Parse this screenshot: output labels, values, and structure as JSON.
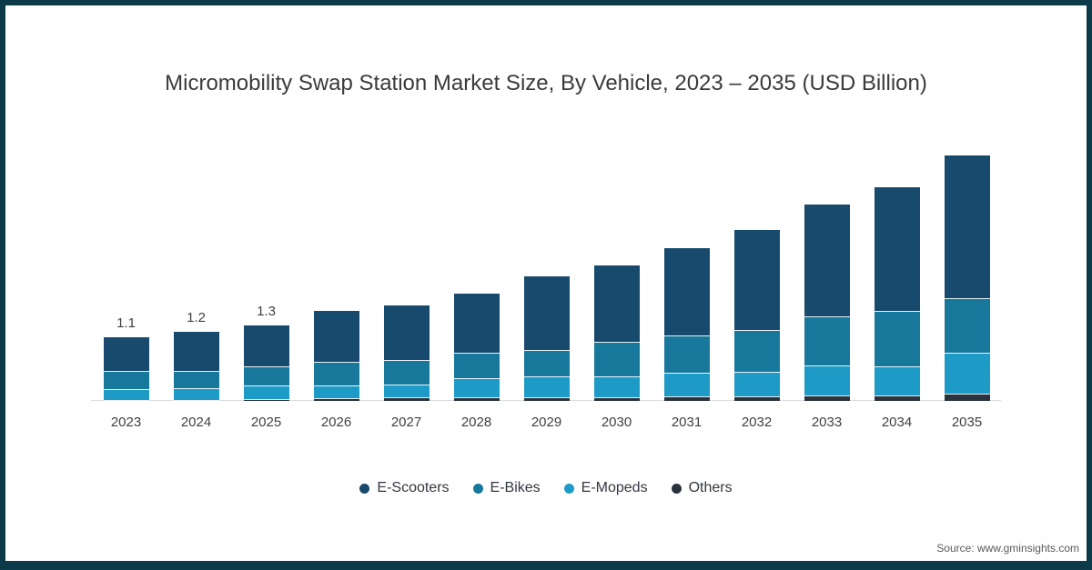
{
  "title": "Micromobility Swap Station Market Size, By Vehicle, 2023 – 2035 (USD Billion)",
  "source": "Source: www.gminsights.com",
  "colors": {
    "frame_border": "#0d3a49",
    "axis_line": "#dcdcdc",
    "title_text": "#3a3a3a",
    "label_text": "#404040"
  },
  "chart_data": {
    "type": "bar",
    "stacked": true,
    "title": "Micromobility Swap Station Market Size, By Vehicle, 2023 – 2035 (USD Billion)",
    "unit": "USD Billion",
    "xlabel": "",
    "ylabel": "",
    "y_axis_visible": false,
    "grid": false,
    "legend_position": "bottom",
    "categories": [
      "2023",
      "2024",
      "2025",
      "2026",
      "2027",
      "2028",
      "2029",
      "2030",
      "2031",
      "2032",
      "2033",
      "2034",
      "2035"
    ],
    "series": [
      {
        "name": "E-Scooters",
        "color": "#174a6c",
        "values": [
          0.58,
          0.68,
          0.71,
          0.87,
          0.94,
          1.02,
          1.27,
          1.33,
          1.52,
          1.73,
          1.94,
          2.15,
          2.47
        ]
      },
      {
        "name": "E-Bikes",
        "color": "#17789b",
        "values": [
          0.31,
          0.3,
          0.33,
          0.42,
          0.42,
          0.43,
          0.46,
          0.6,
          0.65,
          0.72,
          0.85,
          0.95,
          0.95
        ]
      },
      {
        "name": "E-Mopeds",
        "color": "#1d9bc6",
        "values": [
          0.19,
          0.2,
          0.23,
          0.21,
          0.23,
          0.34,
          0.35,
          0.35,
          0.4,
          0.42,
          0.52,
          0.5,
          0.71
        ]
      },
      {
        "name": "Others",
        "color": "#28333e",
        "values": [
          0.02,
          0.02,
          0.03,
          0.05,
          0.06,
          0.06,
          0.07,
          0.07,
          0.08,
          0.08,
          0.09,
          0.1,
          0.12
        ]
      }
    ],
    "totals_estimated": [
      1.1,
      1.2,
      1.3,
      1.55,
      1.65,
      1.85,
      2.15,
      2.35,
      2.65,
      2.95,
      3.4,
      3.7,
      4.25
    ],
    "value_labels": [
      "1.1",
      "1.2",
      "1.3",
      "",
      "",
      "",
      "",
      "",
      "",
      "",
      "",
      "",
      ""
    ]
  }
}
